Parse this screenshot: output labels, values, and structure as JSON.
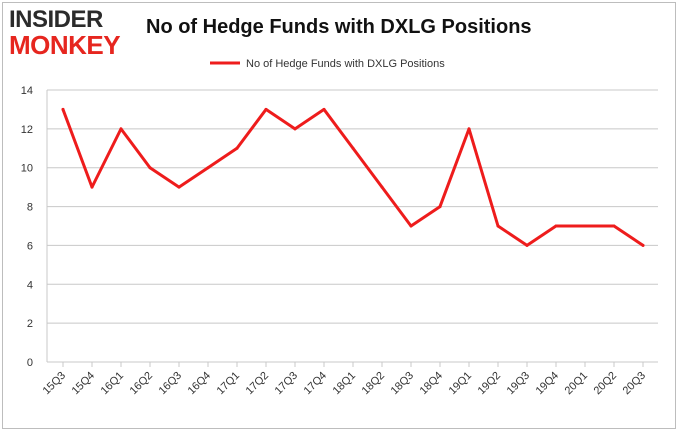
{
  "logo": {
    "line1": "INSIDER",
    "line2": "MONKEY"
  },
  "chart_data": {
    "type": "line",
    "title": "No of Hedge Funds with DXLG Positions",
    "categories": [
      "15Q3",
      "15Q4",
      "16Q1",
      "16Q2",
      "16Q3",
      "16Q4",
      "17Q1",
      "17Q2",
      "17Q3",
      "17Q4",
      "18Q1",
      "18Q2",
      "18Q3",
      "18Q4",
      "19Q1",
      "19Q2",
      "19Q3",
      "19Q4",
      "20Q1",
      "20Q2",
      "20Q3"
    ],
    "series": [
      {
        "name": "No of Hedge Funds with DXLG Positions",
        "values": [
          13,
          9,
          12,
          10,
          9,
          10,
          11,
          13,
          12,
          13,
          11,
          9,
          7,
          8,
          12,
          7,
          6,
          7,
          7,
          7,
          6
        ]
      }
    ],
    "ylim": [
      0,
      14
    ],
    "yticks": [
      0,
      2,
      4,
      6,
      8,
      10,
      12,
      14
    ],
    "grid": true,
    "legend": "top-center",
    "line_color": "#ee1c1c",
    "xlabel": "",
    "ylabel": ""
  }
}
